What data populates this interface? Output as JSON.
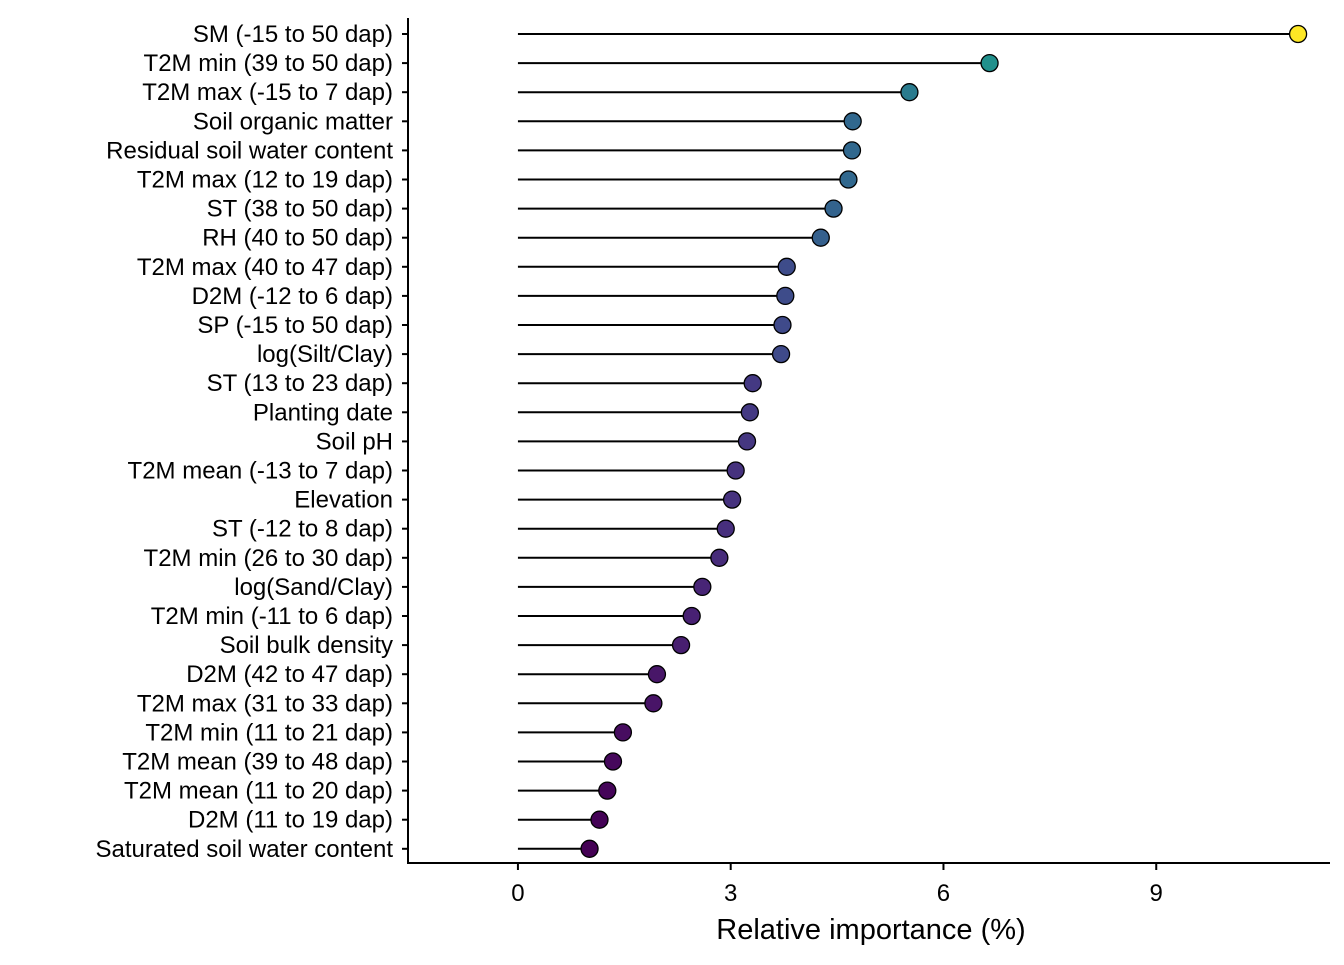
{
  "chart_data": {
    "type": "lollipop",
    "title": "",
    "xlabel": "Relative importance (%)",
    "ylabel": "",
    "xlim": [
      -1.55,
      11.45
    ],
    "xticks": [
      0,
      3,
      6,
      9
    ],
    "grid": false,
    "legend": "none",
    "colormap": "viridis",
    "categories": [
      "SM (-15 to 50 dap)",
      "T2M min (39 to 50 dap)",
      "T2M max (-15 to 7 dap)",
      "Soil organic matter",
      "Residual soil water content",
      "T2M max (12 to 19 dap)",
      "ST (38 to 50 dap)",
      "RH (40 to 50 dap)",
      "T2M max (40 to 47 dap)",
      "D2M (-12 to 6 dap)",
      "SP (-15 to 50 dap)",
      "log(Silt/Clay)",
      "ST (13 to 23 dap)",
      "Planting date",
      "Soil pH",
      "T2M mean (-13 to 7 dap)",
      "Elevation",
      "ST (-12 to 8 dap)",
      "T2M min (26 to 30 dap)",
      "log(Sand/Clay)",
      "T2M min (-11 to 6 dap)",
      "Soil bulk density",
      "D2M (42 to 47 dap)",
      "T2M max (31 to 33 dap)",
      "T2M min (11 to 21 dap)",
      "T2M mean (39 to 48 dap)",
      "T2M mean (11 to 20 dap)",
      "D2M (11 to 19 dap)",
      "Saturated soil water content"
    ],
    "values": [
      11.0,
      6.65,
      5.52,
      4.72,
      4.71,
      4.66,
      4.45,
      4.27,
      3.79,
      3.77,
      3.73,
      3.71,
      3.31,
      3.27,
      3.23,
      3.07,
      3.02,
      2.93,
      2.84,
      2.6,
      2.45,
      2.3,
      1.96,
      1.91,
      1.48,
      1.34,
      1.26,
      1.15,
      1.01
    ],
    "point_colors": [
      "#fde725",
      "#21908c",
      "#2a7b8e",
      "#31688e",
      "#31688e",
      "#31688e",
      "#33638d",
      "#35608d",
      "#3e4c8a",
      "#3e4c8a",
      "#3f4a8a",
      "#3f4a8a",
      "#443983",
      "#443983",
      "#453781",
      "#46327e",
      "#46327e",
      "#472f7d",
      "#472c7a",
      "#482576",
      "#482173",
      "#481f70",
      "#481668",
      "#481467",
      "#470d60",
      "#46085c",
      "#450559",
      "#440256",
      "#440154"
    ],
    "stem_color": "#000000",
    "axis_color": "#000000"
  }
}
